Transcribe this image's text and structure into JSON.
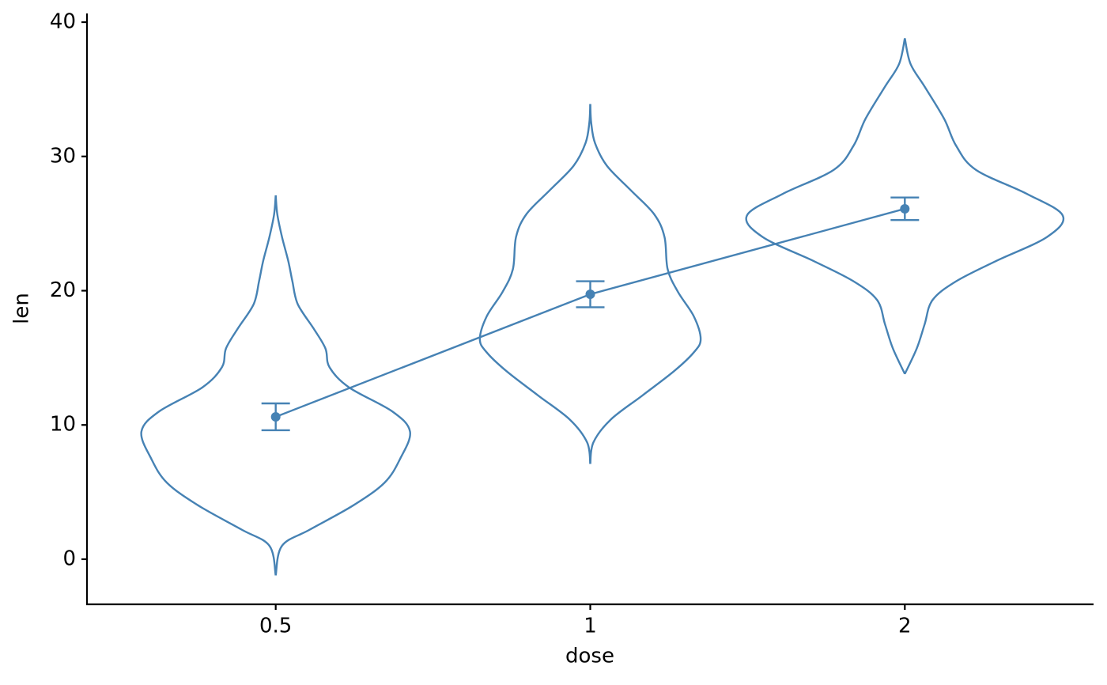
{
  "chart_data": {
    "type": "violin",
    "x_label": "dose",
    "y_label": "len",
    "categories": [
      "0.5",
      "1",
      "2"
    ],
    "color": "#4682b4",
    "means": [
      10.605,
      19.735,
      26.1
    ],
    "errors": [
      1.0,
      0.97,
      0.84
    ],
    "violins": [
      {
        "y": [
          -1.2,
          1.0,
          2.2,
          4,
          5.7,
          7.5,
          9.5,
          11,
          12.8,
          14.3,
          15.7,
          17.2,
          19,
          20.7,
          22.2,
          24,
          25.7,
          27.1
        ],
        "width": [
          0,
          0.02,
          0.108,
          0.246,
          0.346,
          0.396,
          0.427,
          0.371,
          0.233,
          0.171,
          0.158,
          0.12,
          0.07,
          0.053,
          0.04,
          0.02,
          0.005,
          0
        ]
      },
      {
        "y": [
          7.1,
          8.7,
          10.4,
          12.2,
          14,
          15.4,
          16.4,
          18.1,
          19.9,
          21.6,
          24,
          25.7,
          27.5,
          29.3,
          31,
          32.5,
          33.9
        ],
        "width": [
          0,
          0.01,
          0.065,
          0.166,
          0.266,
          0.329,
          0.351,
          0.329,
          0.279,
          0.246,
          0.236,
          0.203,
          0.128,
          0.053,
          0.015,
          0.003,
          0
        ]
      },
      {
        "y": [
          13.8,
          15.7,
          17.5,
          19.3,
          20.7,
          22.2,
          24,
          25.6,
          27.2,
          29,
          30.8,
          32.8,
          35.2,
          36.9,
          38.8
        ],
        "width": [
          0,
          0.038,
          0.063,
          0.088,
          0.163,
          0.289,
          0.452,
          0.502,
          0.389,
          0.226,
          0.163,
          0.125,
          0.063,
          0.018,
          0
        ]
      }
    ],
    "ylim": [
      -3.36,
      40.65
    ],
    "yticks": [
      0,
      10,
      20,
      30,
      40
    ]
  }
}
